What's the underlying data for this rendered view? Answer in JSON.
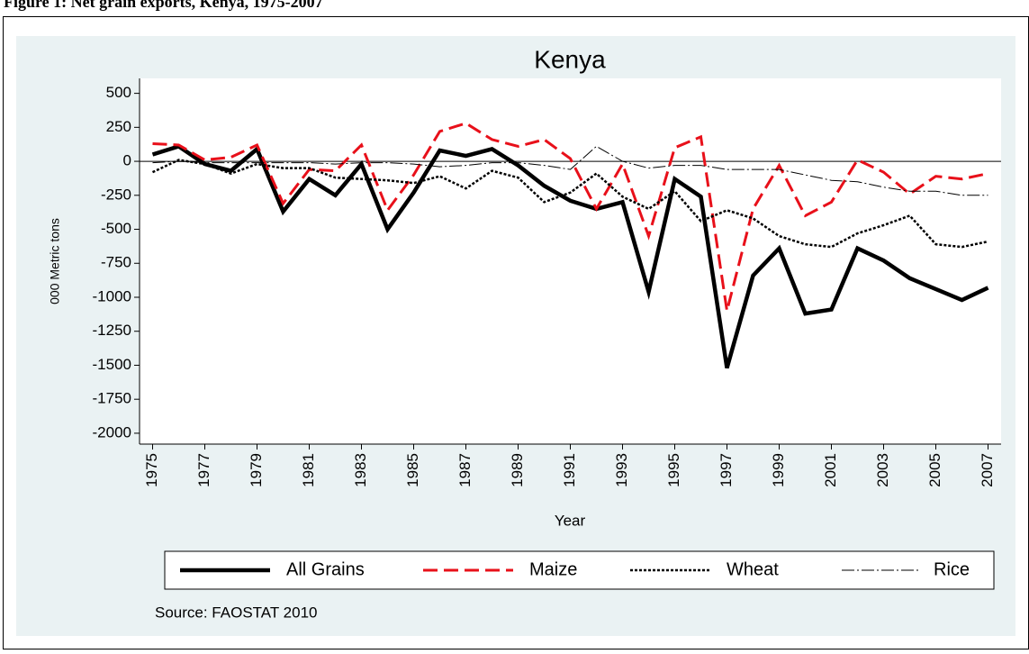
{
  "caption": "Figure 1: Net grain exports, Kenya, 1975-2007",
  "chart_data": {
    "type": "line",
    "title": "Kenya",
    "x_label": "Year",
    "y_label": "000 Metric tons",
    "source": "Source:  FAOSTAT 2010",
    "x": [
      1975,
      1976,
      1977,
      1978,
      1979,
      1980,
      1981,
      1982,
      1983,
      1984,
      1985,
      1986,
      1987,
      1988,
      1989,
      1990,
      1991,
      1992,
      1993,
      1994,
      1995,
      1996,
      1997,
      1998,
      1999,
      2000,
      2001,
      2002,
      2003,
      2004,
      2005,
      2006,
      2007
    ],
    "series": [
      {
        "name": "All Grains",
        "color": "#000000",
        "values": [
          50,
          110,
          -20,
          -70,
          90,
          -370,
          -130,
          -250,
          -20,
          -500,
          -230,
          80,
          40,
          90,
          -30,
          -180,
          -290,
          -350,
          -300,
          -960,
          -130,
          -260,
          -1520,
          -840,
          -640,
          -1120,
          -1090,
          -640,
          -730,
          -860,
          -940,
          -1020,
          -930
        ]
      },
      {
        "name": "Maize",
        "color": "#e8101a",
        "values": [
          130,
          120,
          10,
          30,
          120,
          -310,
          -60,
          -70,
          120,
          -360,
          -100,
          220,
          280,
          160,
          110,
          160,
          20,
          -350,
          -20,
          -550,
          100,
          180,
          -1100,
          -350,
          -30,
          -400,
          -300,
          10,
          -80,
          -240,
          -110,
          -130,
          -90
        ]
      },
      {
        "name": "Wheat",
        "color": "#000000",
        "values": [
          -80,
          10,
          -20,
          -90,
          -20,
          -50,
          -50,
          -120,
          -130,
          -140,
          -160,
          -110,
          -200,
          -70,
          -120,
          -300,
          -230,
          -90,
          -260,
          -350,
          -220,
          -440,
          -360,
          -420,
          -550,
          -610,
          -630,
          -530,
          -470,
          -400,
          -610,
          -630,
          -590
        ]
      },
      {
        "name": "Rice",
        "color": "#000000",
        "values": [
          -10,
          0,
          -10,
          -10,
          -10,
          -10,
          -10,
          -20,
          -10,
          -10,
          -20,
          -40,
          -30,
          -10,
          -10,
          -30,
          -60,
          110,
          0,
          -50,
          -30,
          -30,
          -60,
          -60,
          -60,
          -100,
          -140,
          -150,
          -190,
          -220,
          -220,
          -250,
          -250
        ]
      }
    ],
    "xlim": [
      1974.5,
      2007.5
    ],
    "xticks": [
      1975,
      1977,
      1979,
      1981,
      1983,
      1985,
      1987,
      1989,
      1991,
      1993,
      1995,
      1997,
      1999,
      2001,
      2003,
      2005,
      2007
    ],
    "ylim": [
      -2080,
      610
    ],
    "yticks": [
      500,
      250,
      0,
      -250,
      -500,
      -750,
      -1000,
      -1250,
      -1500,
      -1750,
      -2000
    ],
    "hline": 0,
    "grid": false
  }
}
